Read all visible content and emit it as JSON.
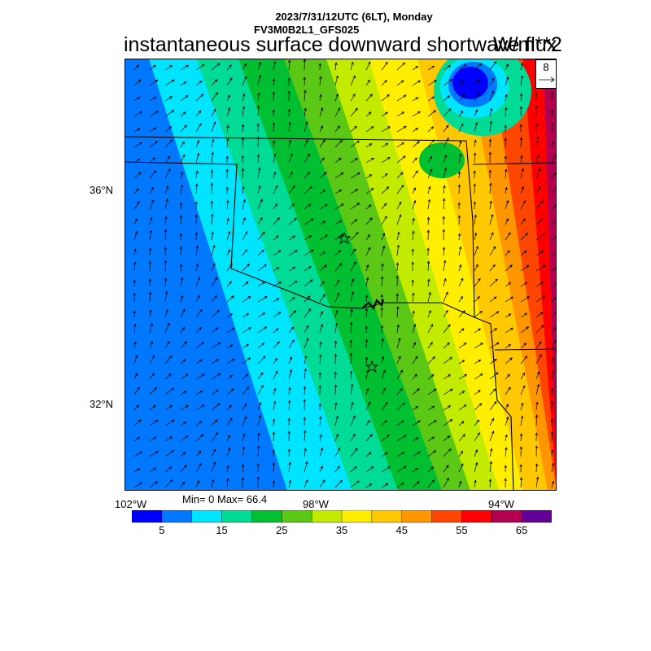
{
  "header": {
    "date_line": "2023/7/31/12UTC (6LT), Monday",
    "model_line": "FV3M0B2L1_GFS025",
    "title": "instantaneous surface downward shortwave flux",
    "units": "W/m**2"
  },
  "map": {
    "lat_labels": [
      "36°N",
      "32°N"
    ],
    "lon_labels": [
      "102°W",
      "98°W",
      "94°W"
    ],
    "reference_vector_label": "8",
    "stats": "Min= 0 Max= 66.4",
    "markers": [
      "star",
      "star"
    ]
  },
  "colorbar": {
    "colors": [
      "#0000ff",
      "#0078ff",
      "#00e5ff",
      "#00dc96",
      "#00c032",
      "#5ac814",
      "#c3eb00",
      "#ffee00",
      "#ffc800",
      "#ff9600",
      "#ff4600",
      "#ff0000",
      "#b40050",
      "#640096"
    ],
    "tick_labels": [
      "5",
      "15",
      "25",
      "35",
      "45",
      "55",
      "65"
    ]
  }
}
